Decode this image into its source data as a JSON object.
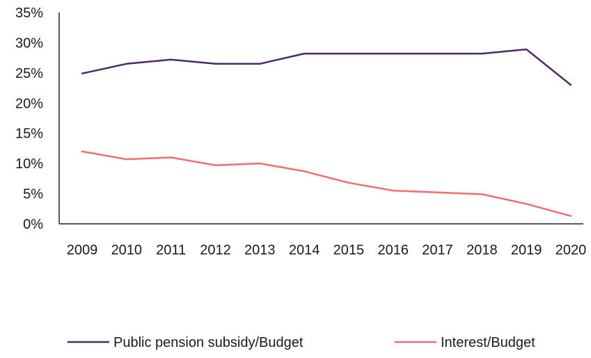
{
  "chart_data": {
    "type": "line",
    "x": [
      "2009",
      "2010",
      "2011",
      "2012",
      "2013",
      "2014",
      "2015",
      "2016",
      "2017",
      "2018",
      "2019",
      "2020"
    ],
    "series": [
      {
        "name": "Public pension subsidy/Budget",
        "values": [
          24.9,
          26.5,
          27.2,
          26.5,
          26.5,
          28.2,
          28.2,
          28.2,
          28.2,
          28.2,
          28.9,
          23.0
        ],
        "color": "#4b2a5f"
      },
      {
        "name": "Interest/Budget",
        "values": [
          12.0,
          10.7,
          11.0,
          9.7,
          10.0,
          8.7,
          6.8,
          5.5,
          5.2,
          4.9,
          3.3,
          1.3
        ],
        "color": "#f26a72"
      }
    ],
    "y_ticks": [
      "0%",
      "5%",
      "10%",
      "15%",
      "20%",
      "25%",
      "30%",
      "35%"
    ],
    "ylim": [
      0,
      35
    ],
    "y_unit": "%",
    "grid": false,
    "legend_position": "bottom",
    "title": "",
    "xlabel": "",
    "ylabel": ""
  }
}
